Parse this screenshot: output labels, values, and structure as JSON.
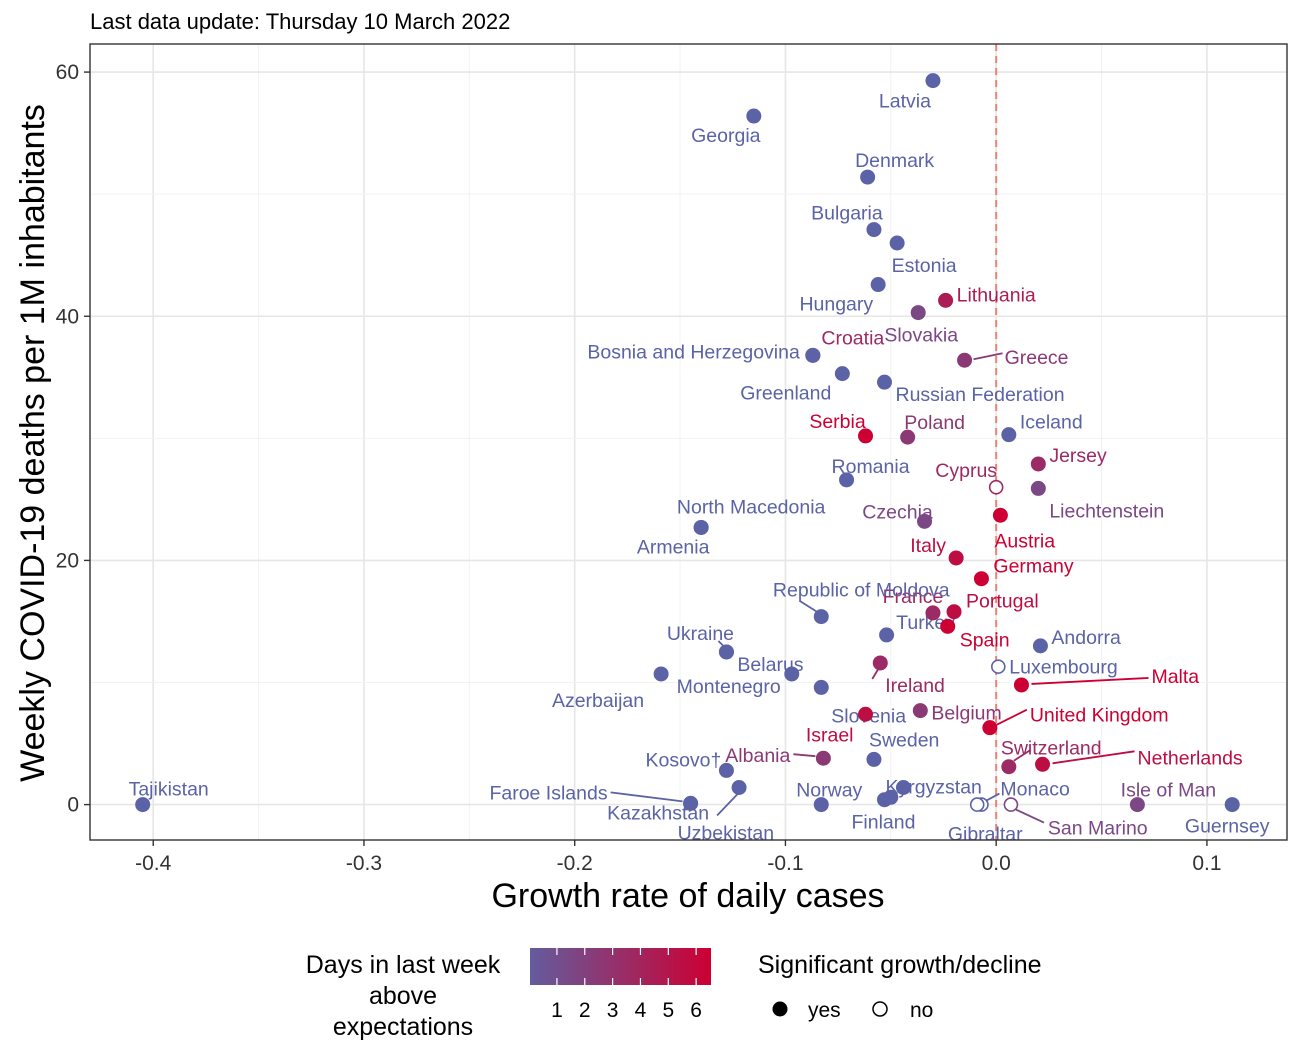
{
  "subtitle": "Last data update: Thursday 10 March 2022",
  "chart_data": {
    "type": "scatter",
    "xlabel": "Growth rate of daily cases",
    "ylabel": "Weekly COVID-19 deaths per 1M inhabitants",
    "xlim": [
      -0.43,
      0.138
    ],
    "ylim": [
      -2.9,
      62.3
    ],
    "x_ticks": [
      -0.4,
      -0.3,
      -0.2,
      -0.1,
      0.0,
      0.1
    ],
    "x_tick_labels": [
      "-0.4",
      "-0.3",
      "-0.2",
      "-0.1",
      "0.0",
      "0.1"
    ],
    "y_ticks": [
      0,
      20,
      40,
      60
    ],
    "y_tick_labels": [
      "0",
      "20",
      "40",
      "60"
    ],
    "reference_line_x": 0,
    "grid": true,
    "color_scale": {
      "low": "#5b63a6",
      "high": "#cc0033",
      "min": 0,
      "max": 7
    },
    "legend": {
      "color_title": [
        "Days in last week",
        "above",
        "expectations"
      ],
      "color_ticks": [
        "1",
        "2",
        "3",
        "4",
        "5",
        "6"
      ],
      "shape_title": "Significant growth/decline",
      "shape_items": [
        "yes",
        "no"
      ],
      "placement": "bottom"
    },
    "points": [
      {
        "label": "Tajikistan",
        "x": -0.405,
        "y": 0,
        "days": 0,
        "sig": true
      },
      {
        "label": "Latvia",
        "x": -0.03,
        "y": 59.3,
        "days": 0,
        "sig": true
      },
      {
        "label": "Georgia",
        "x": -0.115,
        "y": 56.4,
        "days": 0,
        "sig": true
      },
      {
        "label": "Denmark",
        "x": -0.061,
        "y": 51.4,
        "days": 0,
        "sig": true
      },
      {
        "label": "Bulgaria",
        "x": -0.058,
        "y": 47.1,
        "days": 0,
        "sig": true
      },
      {
        "label": "Estonia",
        "x": -0.047,
        "y": 46.0,
        "days": 0,
        "sig": true
      },
      {
        "label": "Hungary",
        "x": -0.056,
        "y": 42.6,
        "days": 0,
        "sig": true
      },
      {
        "label": "Lithuania",
        "x": -0.024,
        "y": 41.3,
        "days": 5,
        "sig": true
      },
      {
        "label": "Slovakia",
        "x": -0.037,
        "y": 40.3,
        "days": 2,
        "sig": true
      },
      {
        "label": "Croatia",
        "x": -0.087,
        "y": 36.8,
        "days": 4,
        "sig": true
      },
      {
        "label": "Bosnia and Herzegovina",
        "x": -0.087,
        "y": 36.8,
        "days": 0,
        "sig": true
      },
      {
        "label": "Greece",
        "x": -0.015,
        "y": 36.4,
        "days": 3,
        "sig": true
      },
      {
        "label": "Greenland",
        "x": -0.073,
        "y": 35.3,
        "days": 0,
        "sig": true
      },
      {
        "label": "Russian Federation",
        "x": -0.053,
        "y": 34.6,
        "days": 0,
        "sig": true
      },
      {
        "label": "Serbia",
        "x": -0.062,
        "y": 30.2,
        "days": 7,
        "sig": true
      },
      {
        "label": "Poland",
        "x": -0.042,
        "y": 30.1,
        "days": 3,
        "sig": true
      },
      {
        "label": "Iceland",
        "x": 0.006,
        "y": 30.3,
        "days": 0,
        "sig": true
      },
      {
        "label": "Jersey",
        "x": 0.02,
        "y": 27.9,
        "days": 4,
        "sig": true
      },
      {
        "label": "Romania",
        "x": -0.071,
        "y": 26.6,
        "days": 0,
        "sig": true
      },
      {
        "label": "Cyprus",
        "x": 0.0,
        "y": 26.0,
        "days": 4,
        "sig": false
      },
      {
        "label": "Liechtenstein",
        "x": 0.02,
        "y": 25.9,
        "days": 2,
        "sig": true
      },
      {
        "label": "Austria",
        "x": 0.002,
        "y": 23.7,
        "days": 7,
        "sig": true
      },
      {
        "label": "Czechia",
        "x": -0.034,
        "y": 23.2,
        "days": 2,
        "sig": true
      },
      {
        "label": "North Macedonia",
        "x": -0.14,
        "y": 22.7,
        "days": 0,
        "sig": true
      },
      {
        "label": "Armenia",
        "x": -0.14,
        "y": 22.7,
        "days": 0,
        "sig": true
      },
      {
        "label": "Italy",
        "x": -0.019,
        "y": 20.2,
        "days": 6,
        "sig": true
      },
      {
        "label": "Germany",
        "x": -0.007,
        "y": 18.5,
        "days": 7,
        "sig": true
      },
      {
        "label": "France",
        "x": -0.03,
        "y": 15.7,
        "days": 4,
        "sig": true
      },
      {
        "label": "Portugal",
        "x": -0.02,
        "y": 15.8,
        "days": 6,
        "sig": true
      },
      {
        "label": "Republic of Moldova",
        "x": -0.083,
        "y": 15.4,
        "days": 0,
        "sig": true
      },
      {
        "label": "Turkey",
        "x": -0.052,
        "y": 13.9,
        "days": 0,
        "sig": true
      },
      {
        "label": "Spain",
        "x": -0.023,
        "y": 14.6,
        "days": 7,
        "sig": true
      },
      {
        "label": "Andorra",
        "x": 0.021,
        "y": 13.0,
        "days": 0,
        "sig": true
      },
      {
        "label": "Ukraine",
        "x": -0.128,
        "y": 12.5,
        "days": 0,
        "sig": true
      },
      {
        "label": "Belarus",
        "x": -0.128,
        "y": 12.5,
        "days": 0,
        "sig": true
      },
      {
        "label": "Ireland",
        "x": -0.055,
        "y": 11.6,
        "days": 4,
        "sig": true
      },
      {
        "label": "Luxembourg",
        "x": 0.001,
        "y": 11.3,
        "days": 0,
        "sig": false
      },
      {
        "label": "Azerbaijan",
        "x": -0.159,
        "y": 10.7,
        "days": 0,
        "sig": true
      },
      {
        "label": "Malta",
        "x": 0.012,
        "y": 9.8,
        "days": 7,
        "sig": true
      },
      {
        "label": "Montenegro",
        "x": -0.097,
        "y": 10.7,
        "days": 0,
        "sig": true
      },
      {
        "label": "Slovenia",
        "x": -0.083,
        "y": 9.6,
        "days": 0,
        "sig": true
      },
      {
        "label": "Belgium",
        "x": -0.036,
        "y": 7.7,
        "days": 3,
        "sig": true
      },
      {
        "label": "Israel",
        "x": -0.062,
        "y": 7.4,
        "days": 6,
        "sig": true
      },
      {
        "label": "United Kingdom",
        "x": -0.003,
        "y": 6.3,
        "days": 7,
        "sig": true
      },
      {
        "label": "Albania",
        "x": -0.082,
        "y": 3.8,
        "days": 3,
        "sig": true
      },
      {
        "label": "Sweden",
        "x": -0.058,
        "y": 3.7,
        "days": 0,
        "sig": true
      },
      {
        "label": "Switzerland",
        "x": 0.006,
        "y": 3.1,
        "days": 4,
        "sig": true
      },
      {
        "label": "Netherlands",
        "x": 0.022,
        "y": 3.3,
        "days": 6,
        "sig": true
      },
      {
        "label": "Kyrgyzstan",
        "x": -0.044,
        "y": 1.4,
        "days": 0,
        "sig": true
      },
      {
        "label": "Faroe Islands",
        "x": -0.145,
        "y": 0.1,
        "days": 0,
        "sig": true
      },
      {
        "label": "Kosovo†",
        "x": -0.128,
        "y": 2.8,
        "days": 0,
        "sig": true
      },
      {
        "label": "Kazakhstan",
        "x": -0.122,
        "y": 1.4,
        "days": 0,
        "sig": true
      },
      {
        "label": "Uzbekistan",
        "x": -0.145,
        "y": 0.1,
        "days": 0,
        "sig": true
      },
      {
        "label": "Norway",
        "x": -0.083,
        "y": 0,
        "days": 0,
        "sig": true
      },
      {
        "label": "Finland",
        "x": -0.053,
        "y": 0.4,
        "days": 0,
        "sig": true
      },
      {
        "label": "Finland",
        "x": -0.05,
        "y": 0.6,
        "days": 0,
        "sig": true
      },
      {
        "label": "Monaco",
        "x": -0.007,
        "y": 0,
        "days": 0,
        "sig": false
      },
      {
        "label": "Gibraltar",
        "x": -0.009,
        "y": 0,
        "days": 0,
        "sig": false
      },
      {
        "label": "San Marino",
        "x": 0.007,
        "y": 0,
        "days": 2,
        "sig": false
      },
      {
        "label": "Isle of Man",
        "x": 0.067,
        "y": 0,
        "days": 2,
        "sig": true
      },
      {
        "label": "Guernsey",
        "x": 0.112,
        "y": 0,
        "days": 0,
        "sig": true
      }
    ]
  }
}
